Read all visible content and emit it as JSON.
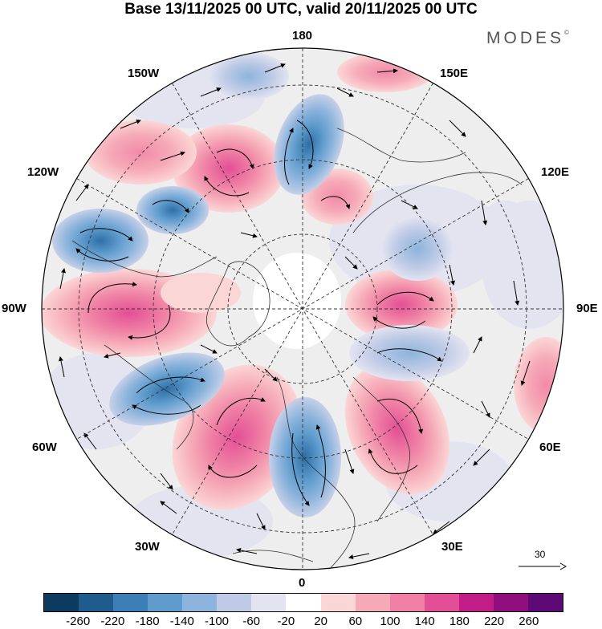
{
  "title": "Base 13/11/2025 00 UTC, valid 20/11/2025 00 UTC",
  "brand": "MODES",
  "brand_mark": "©",
  "longitude_labels": {
    "lon_180": "180",
    "lon_150w": "150W",
    "lon_150e": "150E",
    "lon_120w": "120W",
    "lon_120e": "120E",
    "lon_90w": "90W",
    "lon_90e": "90E",
    "lon_60w": "60W",
    "lon_60e": "60E",
    "lon_30w": "30W",
    "lon_30e": "30E",
    "lon_0": "0"
  },
  "reference_vector": "30",
  "colorbar": {
    "colors": [
      "#0c3b5f",
      "#1f5b8c",
      "#3b7fb6",
      "#5f9ccd",
      "#8cb4dc",
      "#bfcbe6",
      "#e4e4f1",
      "#ffffff",
      "#fbd6d6",
      "#f6aab8",
      "#ef7fa4",
      "#e34f96",
      "#c21d87",
      "#8f0d7d",
      "#5e0a76"
    ],
    "ticks": [
      "-260",
      "-220",
      "-180",
      "-140",
      "-100",
      "-60",
      "-20",
      "20",
      "60",
      "100",
      "140",
      "180",
      "220",
      "260"
    ]
  },
  "colors": {
    "land_background": "#eeeeee",
    "ocean": "#ffffff"
  }
}
